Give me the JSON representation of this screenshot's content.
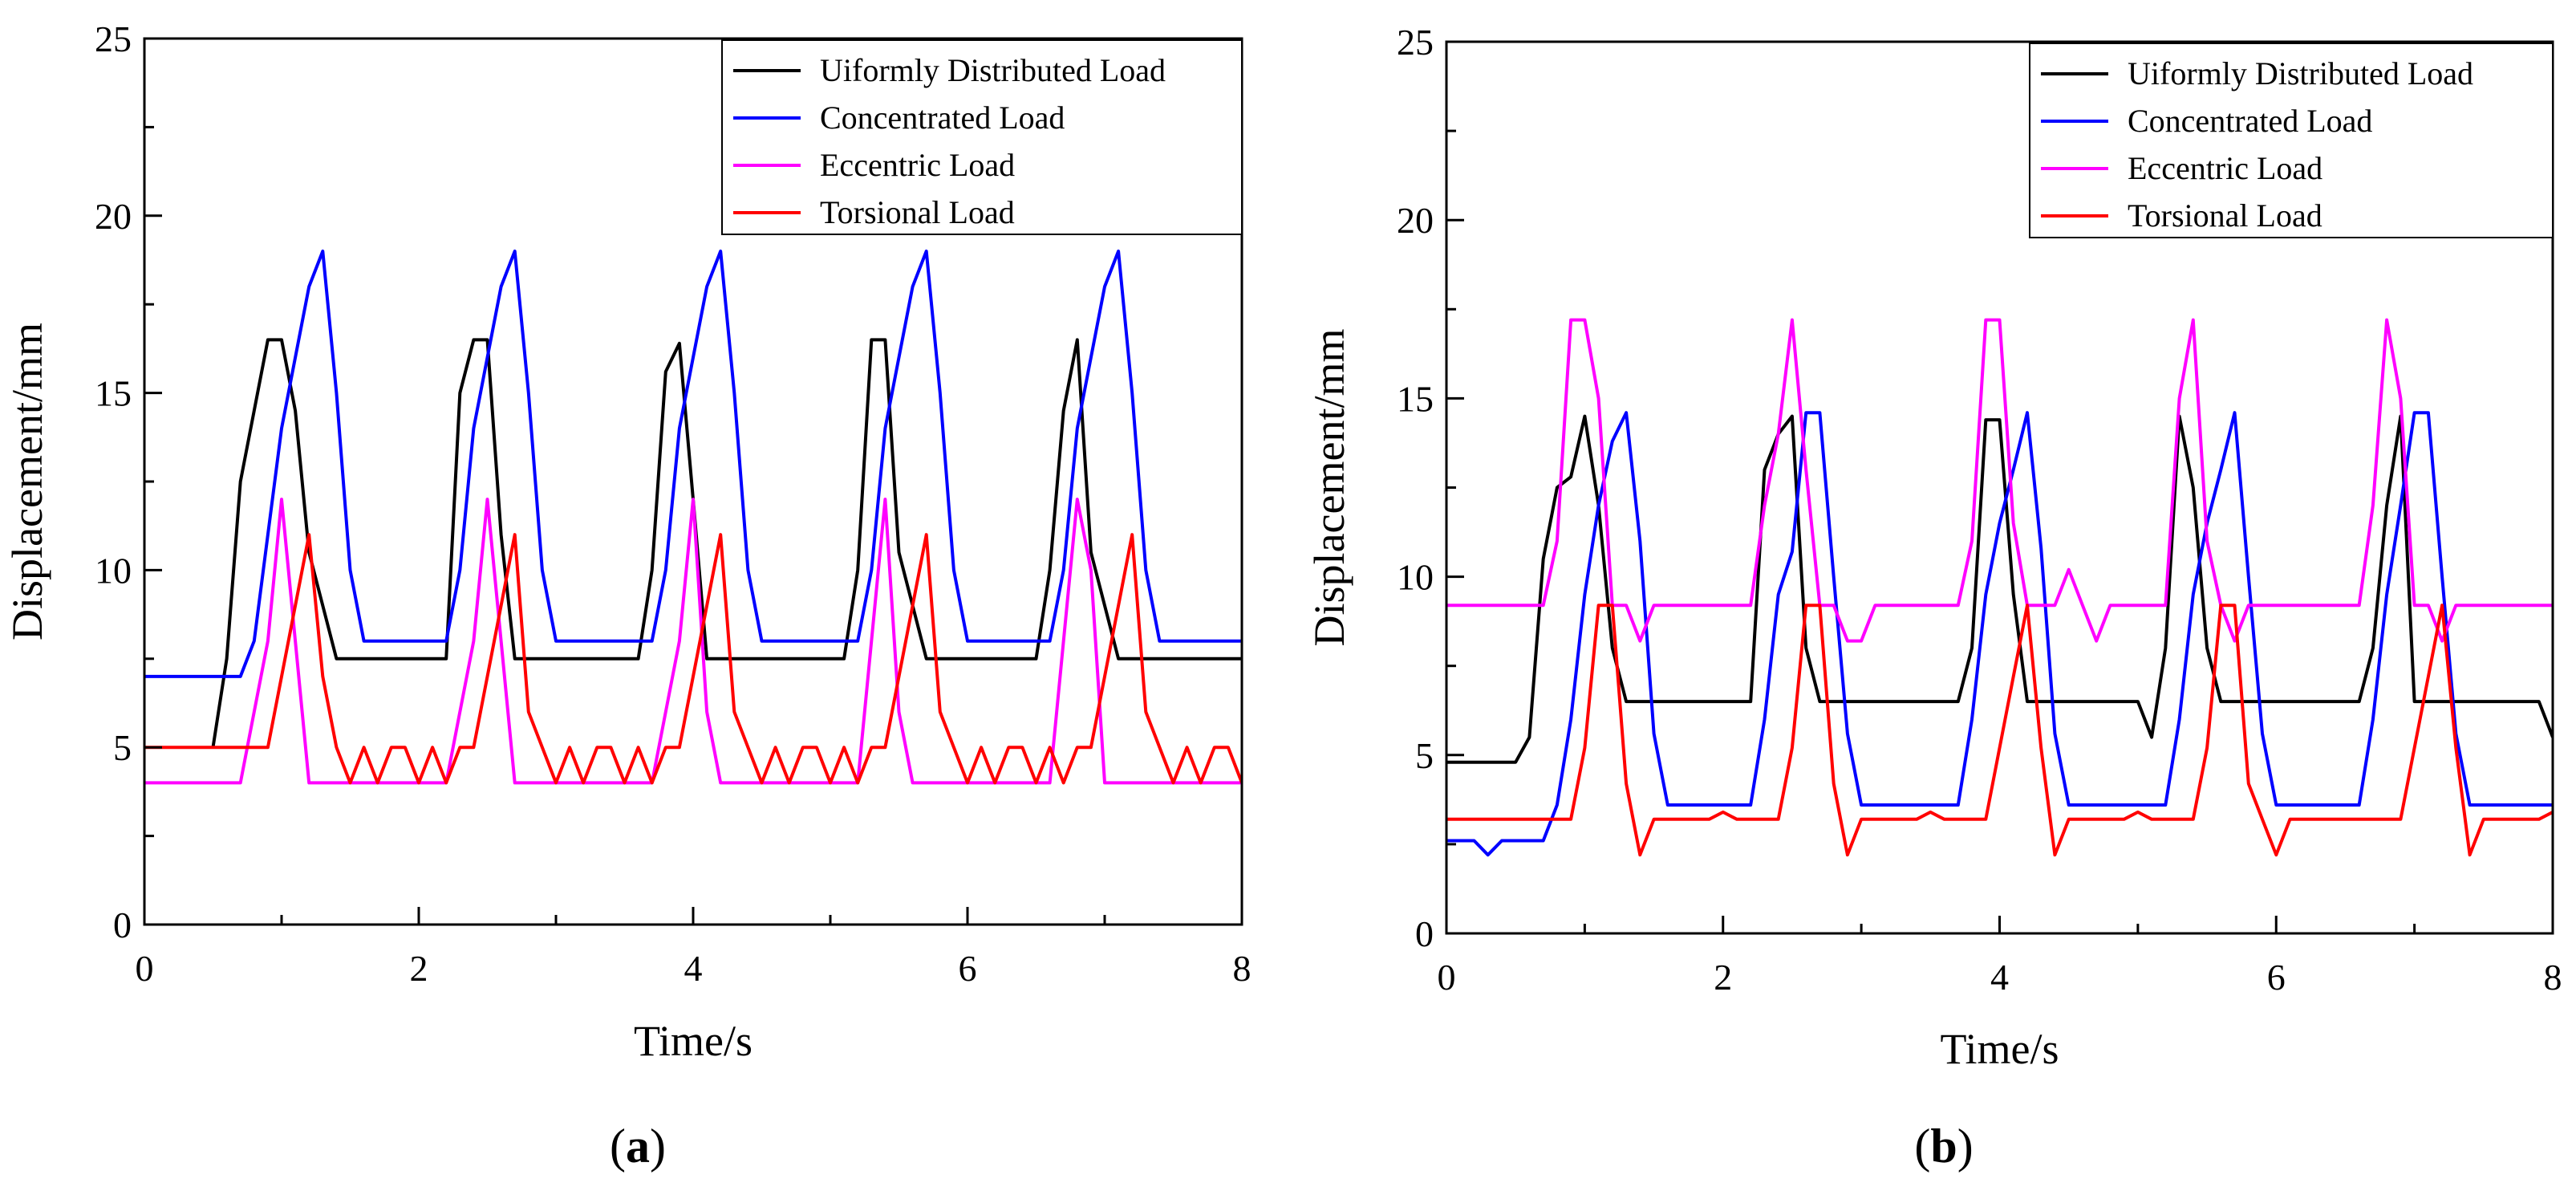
{
  "chart_data": [
    {
      "type": "line",
      "panel_label": "a",
      "xlabel": "Time/s",
      "ylabel": "Displacement/mm",
      "xlim": [
        0,
        8
      ],
      "ylim": [
        0,
        25
      ],
      "xticks": [
        "0",
        "2",
        "4",
        "6",
        "8"
      ],
      "yticks": [
        "0",
        "5",
        "10",
        "15",
        "20",
        "25"
      ],
      "legend_position": "top-right",
      "series": [
        {
          "name": "Uiformly Distributed Load",
          "color": "#000000",
          "x": [
            0.5,
            0.6,
            0.7,
            0.8,
            0.9,
            1.0,
            1.1,
            1.2,
            1.4,
            1.6,
            2.2,
            2.3,
            2.4,
            2.5,
            2.6,
            2.7,
            3.0,
            3.6,
            3.7,
            3.8,
            3.9,
            4.0,
            4.1,
            4.3,
            5.1,
            5.2,
            5.3,
            5.4,
            5.5,
            5.7,
            6.5,
            6.6,
            6.7,
            6.8,
            6.9,
            7.1,
            8.0
          ],
          "y": [
            5,
            7.5,
            12.5,
            14.5,
            16.5,
            16.5,
            14.5,
            10.5,
            7.5,
            7.5,
            7.5,
            15,
            16.5,
            16.5,
            11,
            7.5,
            7.5,
            7.5,
            10,
            15.6,
            16.4,
            12,
            7.5,
            7.5,
            7.5,
            10,
            16.5,
            16.5,
            10.5,
            7.5,
            7.5,
            10,
            14.5,
            16.5,
            10.5,
            7.5,
            7.5
          ]
        },
        {
          "name": "Concentrated Load",
          "color": "#0000ff",
          "x": [
            0,
            0.7,
            0.8,
            0.9,
            1.0,
            1.1,
            1.2,
            1.3,
            1.4,
            1.5,
            1.6,
            2.2,
            2.3,
            2.4,
            2.5,
            2.6,
            2.7,
            2.8,
            2.9,
            3.0,
            3.7,
            3.8,
            3.9,
            4.0,
            4.1,
            4.2,
            4.3,
            4.4,
            4.5,
            5.2,
            5.3,
            5.4,
            5.5,
            5.6,
            5.7,
            5.8,
            5.9,
            6.0,
            6.6,
            6.7,
            6.8,
            6.9,
            7.0,
            7.1,
            7.2,
            7.3,
            7.4,
            8.0
          ],
          "y": [
            7,
            7,
            8,
            11,
            14,
            16,
            18,
            19,
            15,
            10,
            8,
            8,
            10,
            14,
            16,
            18,
            19,
            15,
            10,
            8,
            8,
            10,
            14,
            16,
            18,
            19,
            15,
            10,
            8,
            8,
            10,
            14,
            16,
            18,
            19,
            15,
            10,
            8,
            8,
            10,
            14,
            16,
            18,
            19,
            15,
            10,
            8,
            8
          ]
        },
        {
          "name": "Eccentric Load",
          "color": "#ff00ff",
          "x": [
            0,
            0.7,
            0.8,
            0.9,
            1.0,
            1.1,
            1.2,
            2.2,
            2.3,
            2.4,
            2.5,
            2.6,
            2.7,
            3.7,
            3.8,
            3.9,
            4.0,
            4.1,
            4.2,
            5.2,
            5.3,
            5.4,
            5.5,
            5.6,
            6.6,
            6.7,
            6.8,
            6.9,
            7.0,
            8.0
          ],
          "y": [
            4,
            4,
            6,
            8,
            12,
            8,
            4,
            4,
            6,
            8,
            12,
            8,
            4,
            4,
            6,
            8,
            12,
            6,
            4,
            4,
            8,
            12,
            6,
            4,
            4,
            8,
            12,
            10,
            4,
            4
          ]
        },
        {
          "name": "Torsional Load",
          "color": "#ff0000",
          "x": [
            0,
            0.9,
            1.0,
            1.1,
            1.2,
            1.3,
            1.4,
            1.5,
            1.6,
            1.7,
            1.8,
            1.9,
            2.0,
            2.1,
            2.2,
            2.3,
            2.4,
            2.5,
            2.6,
            2.7,
            2.8,
            2.9,
            3.0,
            3.1,
            3.2,
            3.3,
            3.4,
            3.5,
            3.6,
            3.7,
            3.8,
            3.9,
            4.0,
            4.1,
            4.2,
            4.3,
            4.4,
            4.5,
            4.6,
            4.7,
            4.8,
            4.9,
            5.0,
            5.1,
            5.2,
            5.3,
            5.4,
            5.5,
            5.6,
            5.7,
            5.8,
            5.9,
            6.0,
            6.1,
            6.2,
            6.3,
            6.4,
            6.5,
            6.6,
            6.7,
            6.8,
            6.9,
            7.0,
            7.1,
            7.2,
            7.3,
            7.4,
            7.5,
            7.6,
            7.7,
            7.8,
            7.9,
            8.0
          ],
          "y": [
            5,
            5,
            7,
            9,
            11,
            7,
            5,
            4,
            5,
            4,
            5,
            5,
            4,
            5,
            4,
            5,
            5,
            7,
            9,
            11,
            6,
            5,
            4,
            5,
            4,
            5,
            5,
            4,
            5,
            4,
            5,
            5,
            7,
            9,
            11,
            6,
            5,
            4,
            5,
            4,
            5,
            5,
            4,
            5,
            4,
            5,
            5,
            7,
            9,
            11,
            6,
            5,
            4,
            5,
            4,
            5,
            5,
            4,
            5,
            4,
            5,
            5,
            7,
            9,
            11,
            6,
            5,
            4,
            5,
            4,
            5,
            5,
            4
          ]
        }
      ]
    },
    {
      "type": "line",
      "panel_label": "b",
      "xlabel": "Time/s",
      "ylabel": "Displacement/mm",
      "xlim": [
        0,
        8
      ],
      "ylim": [
        0,
        25
      ],
      "xticks": [
        "0",
        "2",
        "4",
        "6",
        "8"
      ],
      "yticks": [
        "0",
        "5",
        "10",
        "15",
        "20",
        "25"
      ],
      "legend_position": "top-right",
      "series": [
        {
          "name": "Uiformly Distributed Load",
          "color": "#000000",
          "x": [
            0,
            0.5,
            0.6,
            0.7,
            0.8,
            0.9,
            1.0,
            1.1,
            1.2,
            1.3,
            1.4,
            2.2,
            2.3,
            2.4,
            2.5,
            2.6,
            2.7,
            3.7,
            3.8,
            3.9,
            4.0,
            4.1,
            4.2,
            5.0,
            5.1,
            5.2,
            5.3,
            5.4,
            5.5,
            5.6,
            6.6,
            6.7,
            6.8,
            6.9,
            7.0,
            7.9,
            8.0
          ],
          "y": [
            4.8,
            4.8,
            5.5,
            10.5,
            12.5,
            12.8,
            14.5,
            12,
            8,
            6.5,
            6.5,
            6.5,
            13,
            14,
            14.5,
            8,
            6.5,
            6.5,
            8,
            14.4,
            14.4,
            9.5,
            6.5,
            6.5,
            5.5,
            8,
            14.5,
            12.5,
            8,
            6.5,
            6.5,
            8,
            12,
            14.5,
            6.5,
            6.5,
            5.5
          ]
        },
        {
          "name": "Concentrated Load",
          "color": "#0000ff",
          "x": [
            0,
            0.2,
            0.3,
            0.4,
            0.7,
            0.8,
            0.9,
            1.0,
            1.1,
            1.2,
            1.3,
            1.4,
            1.5,
            1.6,
            2.2,
            2.3,
            2.4,
            2.5,
            2.6,
            2.7,
            2.8,
            2.9,
            3.0,
            3.7,
            3.8,
            3.9,
            4.0,
            4.1,
            4.2,
            4.3,
            4.4,
            4.5,
            5.2,
            5.3,
            5.4,
            5.5,
            5.6,
            5.7,
            5.8,
            5.9,
            6.0,
            6.6,
            6.7,
            6.8,
            6.9,
            7.0,
            7.1,
            7.2,
            7.3,
            7.4,
            8.0
          ],
          "y": [
            2.6,
            2.6,
            2.2,
            2.6,
            2.6,
            3.6,
            6,
            9.5,
            12,
            13.8,
            14.6,
            11,
            5.6,
            3.6,
            3.6,
            6,
            9.5,
            10.7,
            14.6,
            14.6,
            10,
            5.6,
            3.6,
            3.6,
            6,
            9.5,
            11.5,
            13,
            14.6,
            10.8,
            5.6,
            3.6,
            3.6,
            6,
            9.5,
            11.5,
            13,
            14.6,
            10,
            5.6,
            3.6,
            3.6,
            6,
            9.5,
            12,
            14.6,
            14.6,
            10,
            5.6,
            3.6,
            3.6
          ]
        },
        {
          "name": "Eccentric Load",
          "color": "#ff00ff",
          "x": [
            0,
            0.7,
            0.8,
            0.9,
            1.0,
            1.1,
            1.2,
            1.3,
            1.4,
            1.5,
            2.2,
            2.3,
            2.4,
            2.5,
            2.6,
            2.7,
            2.8,
            2.9,
            3.0,
            3.1,
            3.7,
            3.8,
            3.9,
            4.0,
            4.1,
            4.2,
            4.3,
            4.4,
            4.5,
            4.6,
            4.7,
            4.8,
            4.9,
            5.2,
            5.3,
            5.4,
            5.5,
            5.6,
            5.7,
            5.8,
            6.6,
            6.7,
            6.8,
            6.9,
            7.0,
            7.1,
            7.2,
            7.3,
            8.0
          ],
          "y": [
            9.2,
            9.2,
            11,
            17.2,
            17.2,
            15,
            9.2,
            9.2,
            8.2,
            9.2,
            9.2,
            12,
            14,
            17.2,
            13,
            9.2,
            9.2,
            8.2,
            8.2,
            9.2,
            9.2,
            11,
            17.2,
            17.2,
            11.5,
            9.2,
            9.2,
            9.2,
            10.2,
            9.2,
            8.2,
            9.2,
            9.2,
            9.2,
            15,
            17.2,
            11,
            9.2,
            8.2,
            9.2,
            9.2,
            12,
            17.2,
            15,
            9.2,
            9.2,
            8.2,
            9.2,
            9.2
          ]
        },
        {
          "name": "Torsional Load",
          "color": "#ff0000",
          "x": [
            0,
            0.9,
            1.0,
            1.1,
            1.2,
            1.3,
            1.4,
            1.5,
            1.9,
            2.0,
            2.1,
            2.4,
            2.5,
            2.6,
            2.7,
            2.8,
            2.9,
            3.0,
            3.4,
            3.5,
            3.6,
            3.9,
            4.0,
            4.1,
            4.2,
            4.3,
            4.4,
            4.5,
            4.9,
            5.0,
            5.1,
            5.4,
            5.5,
            5.6,
            5.7,
            5.8,
            5.9,
            6.0,
            6.1,
            6.9,
            7.0,
            7.1,
            7.2,
            7.3,
            7.4,
            7.5,
            7.9,
            8.0
          ],
          "y": [
            3.2,
            3.2,
            5.2,
            9.2,
            9.2,
            4.2,
            2.2,
            3.2,
            3.2,
            3.4,
            3.2,
            3.2,
            5.2,
            9.2,
            9.2,
            4.2,
            2.2,
            3.2,
            3.2,
            3.4,
            3.2,
            3.2,
            5.2,
            7.2,
            9.2,
            5.2,
            2.2,
            3.2,
            3.2,
            3.4,
            3.2,
            3.2,
            5.2,
            9.2,
            9.2,
            4.2,
            3.2,
            2.2,
            3.2,
            3.2,
            5.2,
            7.2,
            9.2,
            5.2,
            2.2,
            3.2,
            3.2,
            3.4
          ]
        }
      ]
    }
  ]
}
